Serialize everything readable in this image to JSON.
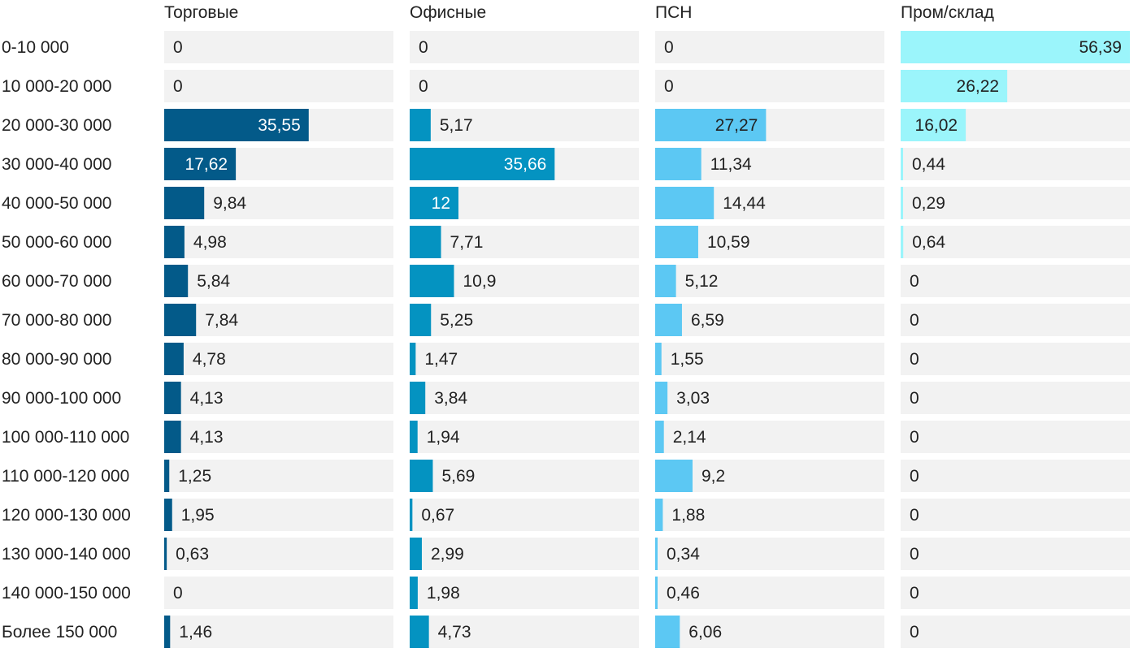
{
  "chart_data": {
    "type": "bar",
    "orientation": "horizontal",
    "layout": "small-multiples",
    "categories": [
      "0-10 000",
      "10 000-20 000",
      "20 000-30 000",
      "30 000-40 000",
      "40 000-50 000",
      "50 000-60 000",
      "60 000-70 000",
      "70 000-80 000",
      "80 000-90 000",
      "90 000-100 000",
      "100 000-110 000",
      "110 000-120 000",
      "120 000-130 000",
      "130 000-140 000",
      "140 000-150 000",
      "Более 150 000"
    ],
    "series": [
      {
        "name": "Торговые",
        "color": "#035a89",
        "labels": [
          "0",
          "0",
          "35,55",
          "17,62",
          "9,84",
          "4,98",
          "5,84",
          "7,84",
          "4,78",
          "4,13",
          "4,13",
          "1,25",
          "1,95",
          "0,63",
          "0",
          "1,46"
        ],
        "values": [
          0,
          0,
          35.55,
          17.62,
          9.84,
          4.98,
          5.84,
          7.84,
          4.78,
          4.13,
          4.13,
          1.25,
          1.95,
          0.63,
          0,
          1.46
        ]
      },
      {
        "name": "Офисные",
        "color": "#0493c1",
        "labels": [
          "0",
          "0",
          "5,17",
          "35,66",
          "12",
          "7,71",
          "10,9",
          "5,25",
          "1,47",
          "3,84",
          "1,94",
          "5,69",
          "0,67",
          "2,99",
          "1,98",
          "4,73"
        ],
        "values": [
          0,
          0,
          5.17,
          35.66,
          12,
          7.71,
          10.9,
          5.25,
          1.47,
          3.84,
          1.94,
          5.69,
          0.67,
          2.99,
          1.98,
          4.73
        ]
      },
      {
        "name": "ПСН",
        "color": "#5cc8f3",
        "labels": [
          "0",
          "0",
          "27,27",
          "11,34",
          "14,44",
          "10,59",
          "5,12",
          "6,59",
          "1,55",
          "3,03",
          "2,14",
          "9,2",
          "1,88",
          "0,34",
          "0,46",
          "6,06"
        ],
        "values": [
          0,
          0,
          27.27,
          11.34,
          14.44,
          10.59,
          5.12,
          6.59,
          1.55,
          3.03,
          2.14,
          9.2,
          1.88,
          0.34,
          0.46,
          6.06
        ]
      },
      {
        "name": "Пром/склад",
        "color": "#9bf5fb",
        "labels": [
          "56,39",
          "26,22",
          "16,02",
          "0,44",
          "0,29",
          "0,64",
          "0",
          "0",
          "0",
          "0",
          "0",
          "0",
          "0",
          "0",
          "0",
          "0"
        ],
        "values": [
          56.39,
          26.22,
          16.02,
          0.44,
          0.29,
          0.64,
          0,
          0,
          0,
          0,
          0,
          0,
          0,
          0,
          0,
          0
        ]
      }
    ],
    "track_color": "#f2f2f2",
    "inside_label_color": "#ffffff",
    "outside_label_color": "#222222",
    "inside_label_color_light_series": "#222222"
  }
}
